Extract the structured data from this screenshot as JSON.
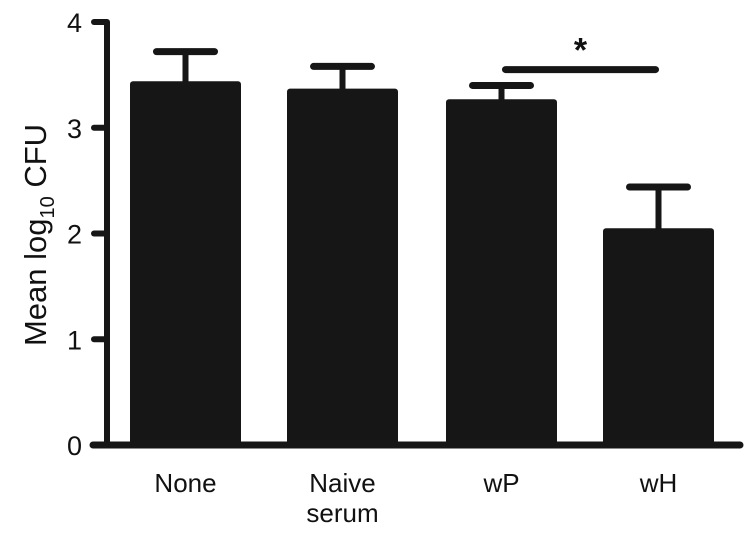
{
  "chart_data": {
    "type": "bar",
    "title": "",
    "xlabel": "",
    "ylabel": "Mean log",
    "ylabel_subscript": "10",
    "ylabel_suffix": " CFU",
    "ylim": [
      0,
      4
    ],
    "yticks": [
      0,
      1,
      2,
      3,
      4
    ],
    "grid": false,
    "legend": null,
    "categories": [
      [
        "None"
      ],
      [
        "Naive",
        "serum"
      ],
      [
        "wP"
      ],
      [
        "wH"
      ]
    ],
    "values": [
      3.44,
      3.37,
      3.27,
      2.05
    ],
    "error_upper": [
      0.28,
      0.21,
      0.13,
      0.39
    ],
    "bar_color": "#161616",
    "significance": [
      {
        "from": 2,
        "to": 3,
        "label": "*",
        "y": 3.55
      }
    ]
  }
}
